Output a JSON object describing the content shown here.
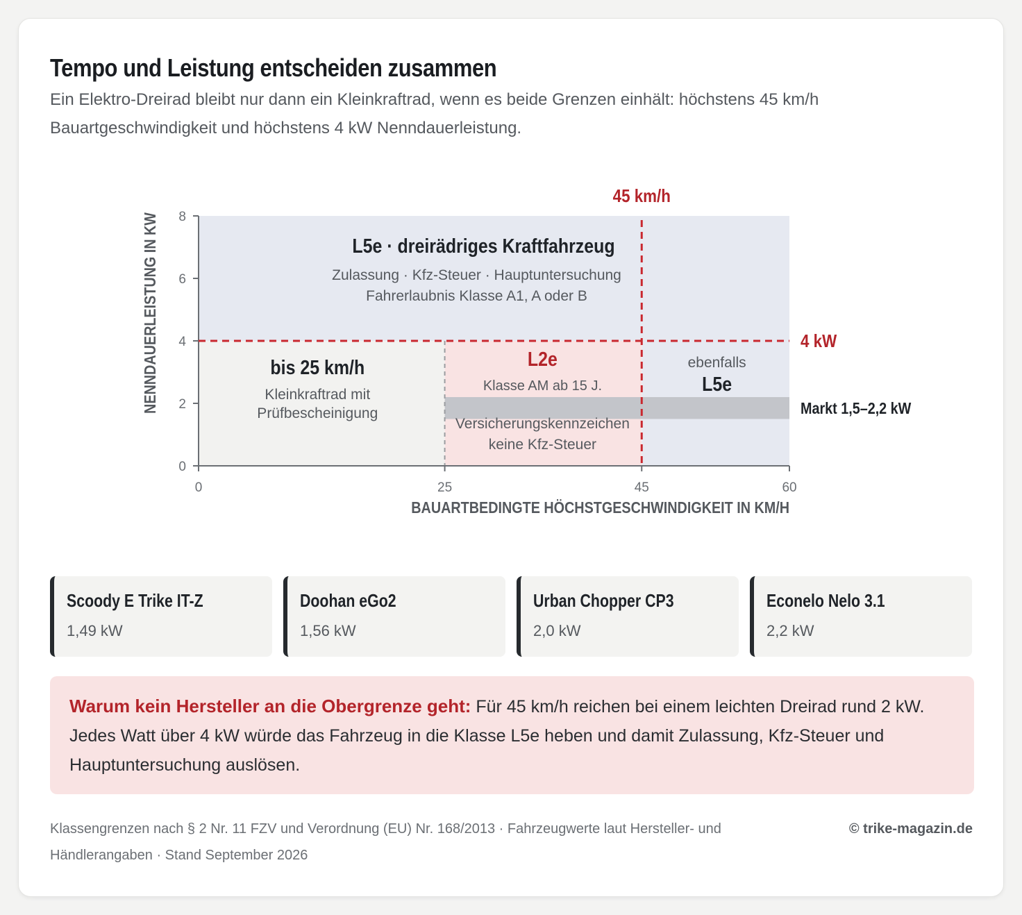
{
  "title": "Tempo und Leistung entscheiden zusammen",
  "subtitle": "Ein Elektro-Dreirad bleibt nur dann ein Kleinkraftrad, wenn es beide Grenzen einhält: höchstens 45 km/h Bauartgeschwindigkeit und höchstens 4 kW Nenndauerleistung.",
  "colors": {
    "l5e_region": "#e6e9f1",
    "kleinkraftrad_region": "#f2f2f0",
    "l2e_region": "#f9e3e3",
    "market_band": "#c3c5ca",
    "limit_line": "#c9282f",
    "limit_text": "#b3242a",
    "axis": "#6b6f74"
  },
  "chart_data": {
    "type": "area",
    "xlabel": "BAUARTBEDINGTE HÖCHSTGESCHWINDIGKEIT IN KM/H",
    "ylabel": "NENNDAUERLEISTUNG IN KW",
    "xlim": [
      0,
      60
    ],
    "ylim": [
      0,
      8
    ],
    "x_ticks": [
      "0",
      "25",
      "45",
      "60"
    ],
    "y_ticks": [
      "0",
      "2",
      "4",
      "6",
      "8"
    ],
    "x_tick_values": [
      0,
      25,
      45,
      60
    ],
    "y_tick_values": [
      0,
      2,
      4,
      6,
      8
    ],
    "regions": [
      {
        "name": "L5e",
        "x": [
          0,
          60
        ],
        "y": [
          4,
          8
        ],
        "title": "L5e · dreirädriges Kraftfahrzeug",
        "lines": [
          "Zulassung · Kfz-Steuer · Hauptuntersuchung",
          "Fahrerlaubnis Klasse A1, A oder B"
        ]
      },
      {
        "name": "bis 25 km/h",
        "x": [
          0,
          25
        ],
        "y": [
          0,
          4
        ],
        "title": "bis 25 km/h",
        "lines": [
          "Kleinkraftrad mit",
          "Prüfbescheinigung"
        ]
      },
      {
        "name": "L2e",
        "x": [
          25,
          45
        ],
        "y": [
          0,
          4
        ],
        "title": "L2e",
        "lines": [
          "Klasse AM ab 15 J.",
          "Versicherungskennzeichen",
          "keine Kfz-Steuer"
        ]
      },
      {
        "name": "L5e-speed",
        "x": [
          45,
          60
        ],
        "y": [
          0,
          4
        ],
        "title": "L5e",
        "lines": [
          "ebenfalls"
        ]
      }
    ],
    "market_band": {
      "x": [
        25,
        60
      ],
      "y": [
        1.5,
        2.2
      ],
      "label": "Markt 1,5–2,2 kW"
    },
    "limits": [
      {
        "axis": "x",
        "value": 45,
        "label": "45 km/h"
      },
      {
        "axis": "y",
        "value": 4,
        "label": "4 kW"
      }
    ],
    "divider": {
      "axis": "x",
      "value": 25
    }
  },
  "vehicles": [
    {
      "name": "Scoody E Trike IT-Z",
      "power": "1,49 kW"
    },
    {
      "name": "Doohan eGo2",
      "power": "1,56 kW"
    },
    {
      "name": "Urban Chopper CP3",
      "power": "2,0 kW"
    },
    {
      "name": "Econelo Nelo 3.1",
      "power": "2,2 kW"
    }
  ],
  "note": {
    "lead": "Warum kein Hersteller an die Obergrenze geht:",
    "text": " Für 45 km/h reichen bei einem leichten Dreirad rund 2 kW. Jedes Watt über 4 kW würde das Fahrzeug in die Klasse L5e heben und damit Zulassung, Kfz-Steuer und Hauptuntersuchung auslösen."
  },
  "source": "Klassengrenzen nach § 2 Nr. 11 FZV und Verordnung (EU) Nr. 168/2013 · Fahrzeugwerte laut Hersteller- und Händlerangaben · Stand September 2026",
  "copyright": "© trike-magazin.de"
}
